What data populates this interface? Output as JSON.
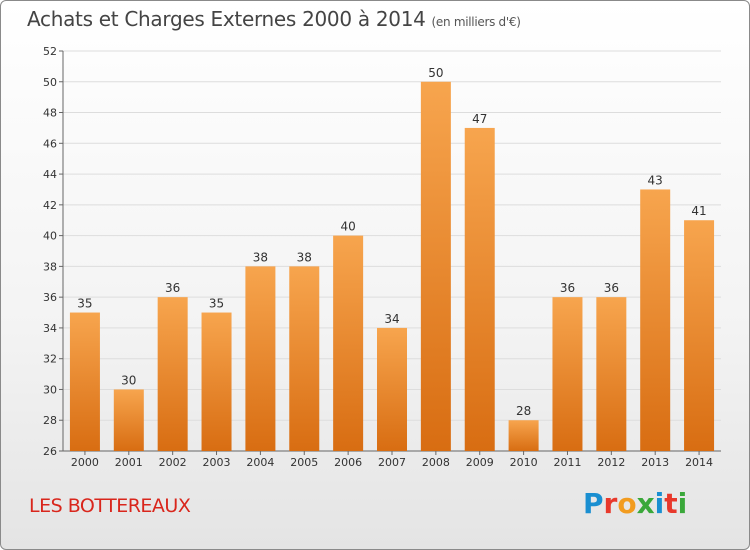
{
  "header": {
    "title": "Achats et Charges Externes 2000 à 2014",
    "subtitle": "(en milliers d'€)"
  },
  "footer": {
    "location": "LES BOTTEREAUX",
    "logo_text": "Proxiti",
    "logo_colors": [
      "#1a8fd1",
      "#e8392c",
      "#f29c1f",
      "#3aa83a",
      "#1a8fd1",
      "#e8392c",
      "#3aa83a"
    ]
  },
  "colors": {
    "bar_top": "#f7a54e",
    "bar_bottom": "#d86d12",
    "grid": "#dddddd",
    "axis": "#666666"
  },
  "chart_data": {
    "type": "bar",
    "title": "Achats et Charges Externes 2000 à 2014",
    "subtitle": "(en milliers d'€)",
    "categories": [
      "2000",
      "2001",
      "2002",
      "2003",
      "2004",
      "2005",
      "2006",
      "2007",
      "2008",
      "2009",
      "2010",
      "2011",
      "2012",
      "2013",
      "2014"
    ],
    "values": [
      35,
      30,
      36,
      35,
      38,
      38,
      40,
      34,
      50,
      47,
      28,
      36,
      36,
      43,
      41
    ],
    "ylim": [
      26,
      52
    ],
    "yticks": [
      26,
      28,
      30,
      32,
      34,
      36,
      38,
      40,
      42,
      44,
      46,
      48,
      50,
      52
    ],
    "grid": true,
    "data_labels": true
  }
}
